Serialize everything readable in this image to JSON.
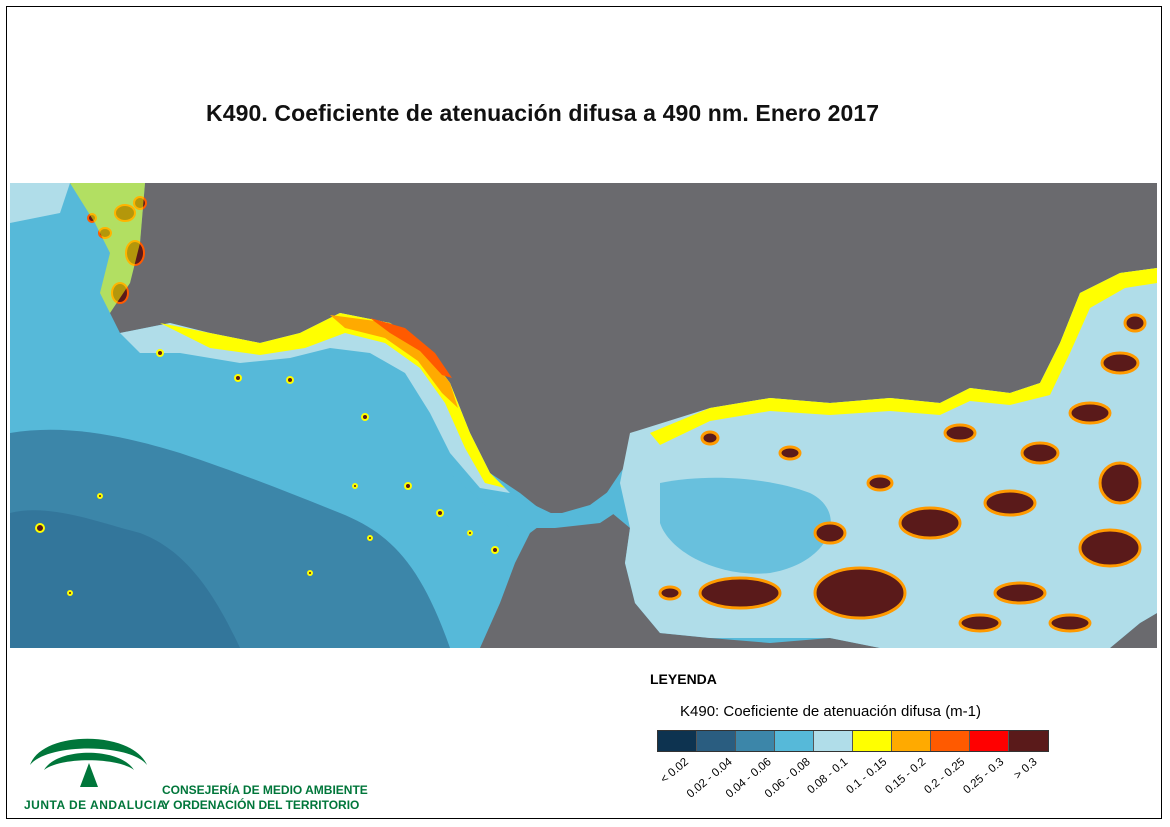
{
  "title": "K490. Coeficiente de atenuación difusa a 490 nm. Enero 2017",
  "legend": {
    "heading": "LEYENDA",
    "subtitle": "K490: Coeficiente de atenuación difusa (m-1)",
    "classes": [
      {
        "label": "< 0.02",
        "color": "#0d3350"
      },
      {
        "label": "0.02 - 0.04",
        "color": "#2a5d80"
      },
      {
        "label": "0.04 - 0.06",
        "color": "#3c86a9"
      },
      {
        "label": "0.06 - 0.08",
        "color": "#56b9d9"
      },
      {
        "label": "0.08 - 0.1",
        "color": "#b0dde9"
      },
      {
        "label": "0.1 - 0.15",
        "color": "#ffff00"
      },
      {
        "label": "0.15 - 0.2",
        "color": "#ffaa00"
      },
      {
        "label": "0.2 - 0.25",
        "color": "#ff5a00"
      },
      {
        "label": "0.25 - 0.3",
        "color": "#ff0000"
      },
      {
        "label": "> 0.3",
        "color": "#5a1a1a"
      }
    ]
  },
  "map": {
    "land_color": "#6a6a6e",
    "region": "Strait of Gibraltar / Alboran Sea"
  },
  "organization": {
    "logo_text": "JUNTA DE ANDALUCIA",
    "name_line1": "CONSEJERÍA DE MEDIO AMBIENTE",
    "name_line2": "Y ORDENACIÓN DEL TERRITORIO",
    "color": "#00763a"
  }
}
